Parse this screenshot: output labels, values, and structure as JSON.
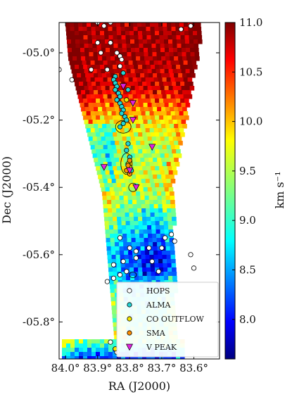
{
  "chart_data": {
    "type": "heatmap",
    "xlabel": "RA (J2000)",
    "ylabel": "Dec (J2000)",
    "colorbar_label": "km s⁻¹",
    "xlim": [
      84.02,
      83.52
    ],
    "ylim": [
      -5.91,
      -4.91
    ],
    "x_ticks": [
      {
        "value": 84.0,
        "label": "84.0°"
      },
      {
        "value": 83.9,
        "label": "83.9°"
      },
      {
        "value": 83.8,
        "label": "83.8°"
      },
      {
        "value": 83.7,
        "label": "83.7°"
      },
      {
        "value": 83.6,
        "label": "83.6°"
      }
    ],
    "y_ticks": [
      {
        "value": -5.0,
        "label": "-05.0°"
      },
      {
        "value": -5.2,
        "label": "-05.2°"
      },
      {
        "value": -5.4,
        "label": "-05.4°"
      },
      {
        "value": -5.6,
        "label": "-05.6°"
      },
      {
        "value": -5.8,
        "label": "-05.8°"
      }
    ],
    "colorbar_range": [
      7.6,
      11.0
    ],
    "colorbar_ticks": [
      {
        "value": 11.0,
        "label": "11.0"
      },
      {
        "value": 10.5,
        "label": "10.5"
      },
      {
        "value": 10.0,
        "label": "10.0"
      },
      {
        "value": 9.5,
        "label": "9.5"
      },
      {
        "value": 9.0,
        "label": "9.0"
      },
      {
        "value": 8.5,
        "label": "8.5"
      },
      {
        "value": 8.0,
        "label": "8.0"
      }
    ],
    "legend": [
      {
        "label": "HOPS",
        "marker": "circle",
        "color": "#ffffff"
      },
      {
        "label": "ALMA",
        "marker": "circle",
        "color": "#22d4d4"
      },
      {
        "label": "CO OUTFLOW",
        "marker": "circle",
        "color": "#f5e600"
      },
      {
        "label": "SMA",
        "marker": "circle",
        "color": "#ff8c00"
      },
      {
        "label": "V PEAK",
        "marker": "triangle-down",
        "color": "#e020e0"
      }
    ],
    "legend_position": "lower-right",
    "velocity_field": [
      {
        "dec": -4.94,
        "v": 10.9
      },
      {
        "dec": -5.0,
        "v": 10.9
      },
      {
        "dec": -5.05,
        "v": 10.8
      },
      {
        "dec": -5.1,
        "v": 10.7
      },
      {
        "dec": -5.15,
        "v": 10.2
      },
      {
        "dec": -5.2,
        "v": 9.8
      },
      {
        "dec": -5.25,
        "v": 9.6
      },
      {
        "dec": -5.3,
        "v": 9.4
      },
      {
        "dec": -5.35,
        "v": 9.6
      },
      {
        "dec": -5.4,
        "v": 9.5
      },
      {
        "dec": -5.45,
        "v": 9.3
      },
      {
        "dec": -5.5,
        "v": 9.0
      },
      {
        "dec": -5.55,
        "v": 8.6
      },
      {
        "dec": -5.6,
        "v": 8.3
      },
      {
        "dec": -5.65,
        "v": 8.4
      },
      {
        "dec": -5.7,
        "v": 8.8
      },
      {
        "dec": -5.75,
        "v": 9.0
      },
      {
        "dec": -5.8,
        "v": 9.1
      },
      {
        "dec": -5.85,
        "v": 9.3
      },
      {
        "dec": -5.9,
        "v": 8.2
      }
    ],
    "hops": [
      [
        83.9,
        -4.91
      ],
      [
        83.88,
        -4.92
      ],
      [
        83.86,
        -4.91
      ],
      [
        83.64,
        -4.93
      ],
      [
        83.61,
        -4.92
      ],
      [
        83.86,
        -4.97
      ],
      [
        83.9,
        -4.97
      ],
      [
        83.89,
        -5.0
      ],
      [
        83.84,
        -5.0
      ],
      [
        83.83,
        -5.01
      ],
      [
        83.825,
        -5.02
      ],
      [
        83.83,
        -5.04
      ],
      [
        84.02,
        -5.05
      ],
      [
        83.98,
        -5.08
      ],
      [
        83.92,
        -5.05
      ],
      [
        83.87,
        -5.05
      ],
      [
        83.67,
        -5.54
      ],
      [
        83.66,
        -5.56
      ],
      [
        83.7,
        -5.58
      ],
      [
        83.74,
        -5.58
      ],
      [
        83.78,
        -5.59
      ],
      [
        83.78,
        -5.61
      ],
      [
        83.82,
        -5.62
      ],
      [
        83.81,
        -5.65
      ],
      [
        83.83,
        -5.66
      ],
      [
        83.85,
        -5.63
      ],
      [
        83.87,
        -5.68
      ],
      [
        83.73,
        -5.62
      ],
      [
        83.71,
        -5.65
      ],
      [
        83.7,
        -5.7
      ],
      [
        83.61,
        -5.6
      ],
      [
        83.6,
        -5.64
      ],
      [
        83.8,
        -5.58
      ],
      [
        83.85,
        -5.67
      ],
      [
        83.86,
        -5.86
      ],
      [
        83.84,
        -5.89
      ],
      [
        83.69,
        -5.55
      ],
      [
        83.83,
        -5.55
      ]
    ],
    "alma": [
      [
        83.845,
        -5.07
      ],
      [
        83.85,
        -5.08
      ],
      [
        83.845,
        -5.09
      ],
      [
        83.84,
        -5.1
      ],
      [
        83.845,
        -5.11
      ],
      [
        83.835,
        -5.12
      ],
      [
        83.83,
        -5.13
      ],
      [
        83.84,
        -5.14
      ],
      [
        83.83,
        -5.15
      ],
      [
        83.825,
        -5.16
      ],
      [
        83.82,
        -5.17
      ],
      [
        83.825,
        -5.18
      ],
      [
        83.815,
        -5.19
      ],
      [
        83.81,
        -5.2
      ],
      [
        83.82,
        -5.21
      ],
      [
        83.805,
        -5.27
      ],
      [
        83.81,
        -5.29
      ],
      [
        83.8,
        -5.31
      ],
      [
        83.795,
        -5.35
      ],
      [
        83.82,
        -5.06
      ],
      [
        83.805,
        -5.11
      ],
      [
        83.83,
        -5.22
      ]
    ],
    "co_outflow": [
      [
        83.805,
        -5.33
      ],
      [
        83.8,
        -5.34
      ],
      [
        83.81,
        -5.14
      ],
      [
        83.845,
        -5.88
      ]
    ],
    "sma": [
      [
        83.8,
        -5.32
      ],
      [
        83.805,
        -5.335
      ],
      [
        83.8,
        -5.36
      ],
      [
        83.81,
        -5.35
      ]
    ],
    "v_peak": [
      [
        83.82,
        -5.1
      ],
      [
        83.79,
        -5.15
      ],
      [
        83.79,
        -5.2
      ],
      [
        83.73,
        -5.28
      ],
      [
        83.8,
        -5.35
      ],
      [
        83.88,
        -5.34
      ],
      [
        83.78,
        -5.4
      ]
    ]
  }
}
